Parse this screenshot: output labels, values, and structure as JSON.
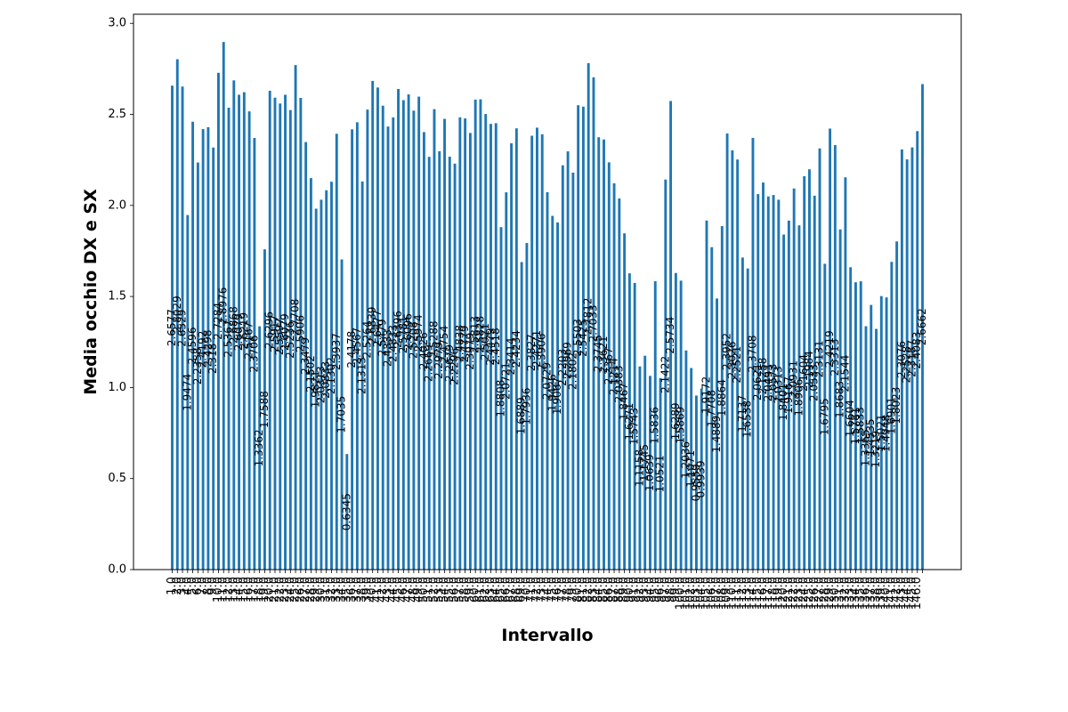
{
  "chart_data": {
    "type": "bar",
    "xlabel": "Intervallo",
    "ylabel": "Media occhio DX e SX",
    "ylim": [
      0,
      3.05
    ],
    "yticks": [
      0.0,
      0.5,
      1.0,
      1.5,
      2.0,
      2.5,
      3.0
    ],
    "ytick_labels": [
      "0.0",
      "0.5",
      "1.0",
      "1.5",
      "2.0",
      "2.5",
      "3.0"
    ],
    "grid": false,
    "bar_color": "#1f77b4",
    "categories": [
      "1.0",
      "2.0",
      "3.0",
      "4.0",
      "5.0",
      "6.0",
      "7.0",
      "8.0",
      "9.0",
      "10.0",
      "11.0",
      "12.0",
      "13.0",
      "14.0",
      "15.0",
      "16.0",
      "17.0",
      "18.0",
      "19.0",
      "20.0",
      "21.0",
      "22.0",
      "23.0",
      "24.0",
      "25.0",
      "26.0",
      "27.0",
      "28.0",
      "29.0",
      "30.0",
      "31.0",
      "32.0",
      "33.0",
      "34.0",
      "35.0",
      "36.0",
      "37.0",
      "38.0",
      "39.0",
      "40.0",
      "41.0",
      "42.0",
      "43.0",
      "44.0",
      "45.0",
      "46.0",
      "47.0",
      "48.0",
      "49.0",
      "50.0",
      "51.0",
      "52.0",
      "53.0",
      "54.0",
      "55.0",
      "56.0",
      "57.0",
      "58.0",
      "59.0",
      "60.0",
      "61.0",
      "62.0",
      "63.0",
      "64.0",
      "65.0",
      "66.0",
      "67.0",
      "68.0",
      "69.0",
      "70.0",
      "71.0",
      "72.0",
      "73.0",
      "74.0",
      "75.0",
      "76.0",
      "77.0",
      "78.0",
      "79.0",
      "80.0",
      "81.0",
      "82.0",
      "83.0",
      "84.0",
      "85.0",
      "86.0",
      "87.0",
      "88.0",
      "89.0",
      "90.0",
      "91.0",
      "92.0",
      "93.0",
      "94.0",
      "95.0",
      "96.0",
      "97.0",
      "98.0",
      "99.0",
      "100.0",
      "101.0",
      "102.0",
      "103.0",
      "104.0",
      "105.0",
      "106.0",
      "107.0",
      "108.0",
      "109.0",
      "110.0",
      "111.0",
      "112.0",
      "113.0",
      "114.0",
      "115.0",
      "116.0",
      "117.0",
      "118.0",
      "119.0",
      "120.0",
      "121.0",
      "122.0",
      "123.0",
      "124.0",
      "125.0",
      "126.0",
      "127.0",
      "128.0",
      "129.0",
      "130.0",
      "131.0",
      "132.0",
      "133.0",
      "134.0",
      "135.0",
      "136.0",
      "137.0",
      "138.0",
      "139.0",
      "140.0",
      "141.0",
      "142.0",
      "143.0",
      "144.0",
      "145.0",
      "146.0"
    ],
    "values": [
      2.6577,
      2.8029,
      2.6529,
      1.9474,
      2.4596,
      2.2358,
      2.4192,
      2.4298,
      2.318,
      2.7284,
      2.8976,
      2.5367,
      2.6868,
      2.6079,
      2.6219,
      2.5167,
      2.3706,
      1.3362,
      1.7588,
      2.6296,
      2.5917,
      2.5597,
      2.6079,
      2.5236,
      2.7708,
      2.5906,
      2.3479,
      2.1502,
      1.9821,
      2.0313,
      2.0833,
      2.1302,
      2.3937,
      1.7035,
      0.6345,
      2.4178,
      2.4567,
      2.1313,
      2.5264,
      2.6839,
      2.6477,
      2.5479,
      2.4333,
      2.4833,
      2.6396,
      2.5781,
      2.6096,
      2.5208,
      2.5974,
      2.4026,
      2.2669,
      2.5288,
      2.2979,
      2.4754,
      2.2679,
      2.2296,
      2.4838,
      2.4779,
      2.3979,
      2.5813,
      2.5828,
      2.5021,
      2.4479,
      2.4518,
      1.8808,
      2.0721,
      2.3414,
      2.4234,
      1.6889,
      1.7936,
      2.3827,
      2.4271,
      2.3906,
      2.0729,
      1.9426,
      1.9067,
      2.2203,
      2.2969,
      2.1802,
      2.5503,
      2.5425,
      2.7812,
      2.7033,
      2.3745,
      2.3621,
      2.2367,
      2.1214,
      2.0383,
      1.8467,
      1.6271,
      1.5743,
      1.1158,
      1.1745,
      1.0639,
      1.5836,
      1.0521,
      2.1422,
      2.5734,
      1.6289,
      1.5869,
      1.2036,
      1.1071,
      0.9559,
      0.9939,
      1.9172,
      1.7708,
      1.4889,
      1.8864,
      2.3952,
      2.3026,
      2.2521,
      1.7137,
      1.6538,
      2.3708,
      2.0621,
      2.1258,
      2.0493,
      2.0573,
      2.0313,
      1.8401,
      1.9167,
      2.0931,
      1.8906,
      2.1604,
      2.1984,
      2.0533,
      2.3131,
      1.6795,
      2.4219,
      2.3313,
      1.8683,
      2.1544,
      1.6604,
      1.5781,
      1.5833,
      1.3365,
      1.4535,
      1.3219,
      1.5021,
      1.4948,
      1.6901,
      1.8023,
      2.3076,
      2.2528,
      2.3187,
      2.4083,
      2.6662
    ],
    "labels": [
      "2.6577",
      "2.8029",
      "2.6529",
      "1.9474",
      "2.4596",
      "2.2358",
      "2.4192",
      "2.4298",
      "2.318",
      "2.7284",
      "2.8976",
      "2.5367",
      "2.6868",
      "2.6079",
      "2.6219",
      "2.5167",
      "2.3706",
      "1.3362",
      "1.7588",
      "2.6296",
      "2.5917",
      "2.5597",
      "2.6079",
      "2.5236",
      "2.7708",
      "2.5906",
      "2.3479",
      "2.1502",
      "1.9821",
      "2.0313",
      "2.0833",
      "2.1302",
      "2.3937",
      "1.7035",
      "0.6345",
      "2.4178",
      "2.4567",
      "2.1313",
      "2.5264",
      "2.6839",
      "2.6477",
      "2.5479",
      "2.4333",
      "2.4833",
      "2.6396",
      "2.5781",
      "2.6096",
      "2.5208",
      "2.5974",
      "2.4026",
      "2.2669",
      "2.5288",
      "2.2979",
      "2.4754",
      "2.2679",
      "2.2296",
      "2.4838",
      "2.4779",
      "2.3979",
      "2.5813",
      "2.5828",
      "2.5021",
      "2.4479",
      "2.4518",
      "1.8808",
      "2.0721",
      "2.3414",
      "2.4234",
      "1.6889",
      "1.7936",
      "2.3827",
      "2.4271",
      "2.3906",
      "2.0729",
      "1.9426",
      "1.9067",
      "2.2203",
      "2.2969",
      "2.1802",
      "2.5503",
      "2.5425",
      "2.7812",
      "2.7033",
      "2.3745",
      "2.3621",
      "2.2367",
      "2.1214",
      "2.0383",
      "1.8467",
      "1.6271",
      "1.5743",
      "1.1158",
      "1.1745",
      "1.0639",
      "1.5836",
      "1.0521",
      "2.1422",
      "2.5734",
      "1.6289",
      "1.5869",
      "1.2036",
      "1.1071",
      "0.9559",
      "0.9939",
      "1.9172",
      "1.7708",
      "1.4889",
      "1.8864",
      "2.3952",
      "2.3026",
      "2.2521",
      "1.7137",
      "1.6538",
      "2.3708",
      "2.0621",
      "2.1258",
      "2.0493",
      "2.0573",
      "2.0313",
      "1.8401",
      "1.9167",
      "2.0931",
      "1.8906",
      "2.1604",
      "2.1984",
      "2.0533",
      "2.3131",
      "1.6795",
      "2.4219",
      "2.3313",
      "1.8683",
      "2.1544",
      "1.6604",
      "1.5781",
      "1.5833",
      "1.3365",
      "1.4535",
      "1.3219",
      "1.5021",
      "1.4948",
      "1.6901",
      "1.8023",
      "2.3076",
      "2.2528",
      "2.3187",
      "2.4083",
      "2.6662"
    ]
  }
}
